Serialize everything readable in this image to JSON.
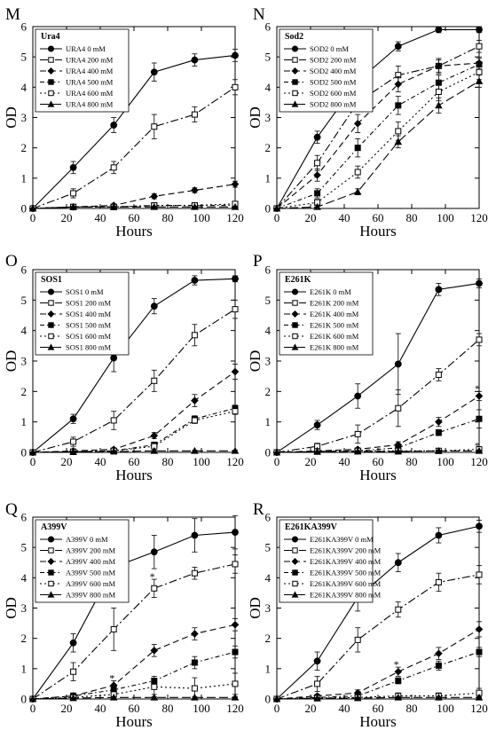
{
  "figure": {
    "panel_letters": [
      "M",
      "N",
      "O",
      "P",
      "Q",
      "R"
    ]
  },
  "chart_data": [
    {
      "type": "line",
      "panel": "M",
      "title": "Ura4",
      "xlabel": "Hours",
      "ylabel": "OD",
      "x": [
        0,
        24,
        48,
        72,
        96,
        120
      ],
      "xlim": [
        0,
        120
      ],
      "ylim": [
        0,
        6
      ],
      "xticks": [
        0,
        20,
        40,
        60,
        80,
        100,
        120
      ],
      "yticks": [
        0,
        1,
        2,
        3,
        4,
        5,
        6
      ],
      "legend_position": "top-left",
      "series": [
        {
          "name": "URA4 0 mM",
          "values": [
            0.0,
            1.35,
            2.75,
            4.5,
            4.9,
            5.05
          ],
          "errors": [
            0,
            0.2,
            0.25,
            0.3,
            0.2,
            0.2
          ]
        },
        {
          "name": "URA4 200 mM",
          "values": [
            0.0,
            0.5,
            1.35,
            2.7,
            3.1,
            4.0
          ],
          "errors": [
            0,
            0.15,
            0.2,
            0.4,
            0.25,
            0.25
          ]
        },
        {
          "name": "URA4 400 mM",
          "values": [
            0.0,
            0.05,
            0.1,
            0.4,
            0.6,
            0.8
          ],
          "errors": [
            0,
            0.05,
            0.05,
            0.08,
            0.08,
            0.1
          ]
        },
        {
          "name": "URA4 500 mM",
          "values": [
            0.0,
            0.05,
            0.05,
            0.1,
            0.1,
            0.1
          ],
          "errors": [
            0,
            0.03,
            0.03,
            0.05,
            0.05,
            0.05
          ]
        },
        {
          "name": "URA4 600 mM",
          "values": [
            0.0,
            0.05,
            0.05,
            0.1,
            0.1,
            0.15
          ],
          "errors": [
            0,
            0.03,
            0.03,
            0.05,
            0.05,
            0.05
          ]
        },
        {
          "name": "URA4 800 mM",
          "values": [
            0.0,
            0.05,
            0.05,
            0.05,
            0.05,
            0.05
          ],
          "errors": [
            0,
            0.02,
            0.02,
            0.02,
            0.02,
            0.02
          ]
        }
      ]
    },
    {
      "type": "line",
      "panel": "N",
      "title": "Sod2",
      "xlabel": "Hours",
      "ylabel": "OD",
      "x": [
        0,
        24,
        48,
        72,
        96,
        120
      ],
      "xlim": [
        0,
        120
      ],
      "ylim": [
        0,
        6
      ],
      "xticks": [
        0,
        20,
        40,
        60,
        80,
        100,
        120
      ],
      "yticks": [
        0,
        1,
        2,
        3,
        4,
        5,
        6
      ],
      "legend_position": "top-left",
      "series": [
        {
          "name": "SOD2 0 mM",
          "values": [
            0.0,
            2.35,
            4.2,
            5.35,
            5.9,
            5.9
          ],
          "errors": [
            0,
            0.2,
            0.2,
            0.15,
            0.1,
            0.1
          ]
        },
        {
          "name": "SOD2 200 mM",
          "values": [
            0.0,
            1.5,
            3.5,
            4.4,
            4.7,
            5.35
          ],
          "errors": [
            0,
            0.25,
            0.3,
            0.3,
            0.25,
            0.2
          ]
        },
        {
          "name": "SOD2 400 mM",
          "values": [
            0.0,
            1.1,
            2.8,
            4.1,
            4.7,
            4.8
          ],
          "errors": [
            0,
            0.2,
            0.3,
            0.25,
            0.2,
            0.2
          ]
        },
        {
          "name": "SOD2 500 mM",
          "values": [
            0.0,
            0.5,
            2.0,
            3.4,
            4.15,
            4.75
          ],
          "errors": [
            0,
            0.15,
            0.3,
            0.3,
            0.25,
            0.2
          ]
        },
        {
          "name": "SOD2 600 mM",
          "values": [
            0.0,
            0.2,
            1.2,
            2.55,
            3.85,
            4.5
          ],
          "errors": [
            0,
            0.1,
            0.2,
            0.3,
            0.3,
            0.25
          ]
        },
        {
          "name": "SOD2 800 mM",
          "values": [
            0.0,
            0.05,
            0.55,
            2.2,
            3.4,
            4.2
          ],
          "errors": [
            0,
            0.05,
            0.1,
            0.2,
            0.25,
            0.2
          ]
        }
      ]
    },
    {
      "type": "line",
      "panel": "O",
      "title": "SOS1",
      "xlabel": "Hours",
      "ylabel": "OD",
      "x": [
        0,
        24,
        48,
        72,
        96,
        120
      ],
      "xlim": [
        0,
        120
      ],
      "ylim": [
        0,
        6
      ],
      "xticks": [
        0,
        20,
        40,
        60,
        80,
        100,
        120
      ],
      "yticks": [
        0,
        1,
        2,
        3,
        4,
        5,
        6
      ],
      "legend_position": "top-left",
      "series": [
        {
          "name": "SOS1 0 mM",
          "values": [
            0.0,
            1.1,
            3.1,
            4.8,
            5.65,
            5.7
          ],
          "errors": [
            0,
            0.15,
            0.45,
            0.25,
            0.15,
            0.1
          ]
        },
        {
          "name": "SOS1 200 mM",
          "values": [
            0.0,
            0.35,
            1.05,
            2.35,
            3.85,
            4.7
          ],
          "errors": [
            0,
            0.15,
            0.3,
            0.35,
            0.35,
            0.3
          ]
        },
        {
          "name": "SOS1 400 mM",
          "values": [
            0.0,
            0.05,
            0.1,
            0.55,
            1.7,
            2.65
          ],
          "errors": [
            0,
            0.03,
            0.05,
            0.1,
            0.2,
            0.25
          ]
        },
        {
          "name": "SOS1 500 mM",
          "values": [
            0.0,
            0.02,
            0.05,
            0.25,
            1.1,
            1.45
          ],
          "errors": [
            0,
            0.02,
            0.03,
            0.05,
            0.1,
            0.1
          ]
        },
        {
          "name": "SOS1 600 mM",
          "values": [
            0.0,
            0.02,
            0.05,
            0.2,
            1.05,
            1.35
          ],
          "errors": [
            0,
            0.02,
            0.03,
            0.05,
            0.1,
            0.1
          ]
        },
        {
          "name": "SOS1 800 mM",
          "values": [
            0.0,
            0.02,
            0.03,
            0.05,
            0.05,
            0.05
          ],
          "errors": [
            0,
            0.02,
            0.02,
            0.02,
            0.02,
            0.02
          ]
        }
      ]
    },
    {
      "type": "line",
      "panel": "P",
      "title": "E261K",
      "xlabel": "Hours",
      "ylabel": "OD",
      "x": [
        0,
        24,
        48,
        72,
        96,
        120
      ],
      "xlim": [
        0,
        120
      ],
      "ylim": [
        0,
        6
      ],
      "xticks": [
        0,
        20,
        40,
        60,
        80,
        100,
        120
      ],
      "yticks": [
        0,
        1,
        2,
        3,
        4,
        5,
        6
      ],
      "legend_position": "top-left",
      "annotations": [
        "*",
        "*"
      ],
      "series": [
        {
          "name": "E261K 0 mM",
          "values": [
            0.0,
            0.9,
            1.85,
            2.9,
            5.35,
            5.55
          ],
          "errors": [
            0,
            0.15,
            0.4,
            1.0,
            0.2,
            0.15
          ]
        },
        {
          "name": "E261K 200 mM",
          "values": [
            0.0,
            0.2,
            0.6,
            1.45,
            2.55,
            3.7
          ],
          "errors": [
            0,
            0.1,
            0.3,
            0.6,
            0.2,
            0.2
          ]
        },
        {
          "name": "E261K 400 mM",
          "values": [
            0.0,
            0.05,
            0.1,
            0.25,
            1.0,
            1.85
          ],
          "errors": [
            0,
            0.03,
            0.05,
            0.1,
            0.15,
            0.15
          ]
        },
        {
          "name": "E261K 500 mM",
          "values": [
            0.0,
            0.03,
            0.05,
            0.15,
            0.65,
            1.1
          ],
          "errors": [
            0,
            0.02,
            0.03,
            0.05,
            0.1,
            0.3
          ]
        },
        {
          "name": "E261K 600 mM",
          "values": [
            0.0,
            0.03,
            0.05,
            0.05,
            0.05,
            0.1
          ],
          "errors": [
            0,
            0.02,
            0.02,
            0.02,
            0.02,
            0.03
          ]
        },
        {
          "name": "E261K 800 mM",
          "values": [
            0.0,
            0.02,
            0.03,
            0.03,
            0.05,
            0.05
          ],
          "errors": [
            0,
            0.02,
            0.02,
            0.02,
            0.02,
            0.02
          ]
        }
      ]
    },
    {
      "type": "line",
      "panel": "Q",
      "title": "A399V",
      "xlabel": "Hours",
      "ylabel": "OD",
      "x": [
        0,
        24,
        48,
        72,
        96,
        120
      ],
      "xlim": [
        0,
        120
      ],
      "ylim": [
        0,
        6
      ],
      "xticks": [
        0,
        20,
        40,
        60,
        80,
        100,
        120
      ],
      "yticks": [
        0,
        1,
        2,
        3,
        4,
        5,
        6
      ],
      "legend_position": "top-left",
      "annotations": [
        "*",
        "*"
      ],
      "series": [
        {
          "name": "A399V 0 mM",
          "values": [
            0.0,
            1.85,
            4.35,
            4.85,
            5.4,
            5.5
          ],
          "errors": [
            0,
            0.3,
            0.6,
            0.55,
            0.55,
            0.55
          ]
        },
        {
          "name": "A399V 200 mM",
          "values": [
            0.0,
            0.9,
            2.3,
            3.65,
            4.15,
            4.45
          ],
          "errors": [
            0,
            0.3,
            0.7,
            0.3,
            0.2,
            0.3
          ]
        },
        {
          "name": "A399V 400 mM",
          "values": [
            0.0,
            0.1,
            0.45,
            1.6,
            2.15,
            2.45
          ],
          "errors": [
            0,
            0.1,
            0.15,
            0.2,
            0.2,
            0.2
          ]
        },
        {
          "name": "A399V 500 mM",
          "values": [
            0.0,
            0.1,
            0.3,
            0.6,
            1.2,
            1.55
          ],
          "errors": [
            0,
            0.05,
            0.1,
            0.15,
            0.2,
            0.2
          ]
        },
        {
          "name": "A399V 600 mM",
          "values": [
            0.0,
            0.05,
            0.15,
            0.4,
            0.35,
            0.5
          ],
          "errors": [
            0,
            0.05,
            0.1,
            0.25,
            0.35,
            0.35
          ]
        },
        {
          "name": "A399V 800 mM",
          "values": [
            0.0,
            0.03,
            0.05,
            0.05,
            0.05,
            0.05
          ],
          "errors": [
            0,
            0.02,
            0.02,
            0.02,
            0.02,
            0.02
          ]
        }
      ]
    },
    {
      "type": "line",
      "panel": "R",
      "title": "E261KA399V",
      "xlabel": "Hours",
      "ylabel": "OD",
      "x": [
        0,
        24,
        48,
        72,
        96,
        120
      ],
      "xlim": [
        0,
        120
      ],
      "ylim": [
        0,
        6
      ],
      "xticks": [
        0,
        20,
        40,
        60,
        80,
        100,
        120
      ],
      "yticks": [
        0,
        1,
        2,
        3,
        4,
        5,
        6
      ],
      "legend_position": "top-left",
      "annotations": [
        "*"
      ],
      "series": [
        {
          "name": "E261KA399V 0 mM",
          "values": [
            0.0,
            1.25,
            3.35,
            4.5,
            5.4,
            5.7
          ],
          "errors": [
            0,
            0.3,
            0.45,
            0.3,
            0.25,
            0.2
          ]
        },
        {
          "name": "E261KA399V 200 mM",
          "values": [
            0.0,
            0.5,
            1.95,
            2.95,
            3.85,
            4.1
          ],
          "errors": [
            0,
            0.25,
            0.4,
            0.25,
            0.3,
            0.3
          ]
        },
        {
          "name": "E261KA399V 400 mM",
          "values": [
            0.0,
            0.1,
            0.2,
            0.9,
            1.5,
            2.3
          ],
          "errors": [
            0,
            0.05,
            0.1,
            0.15,
            0.2,
            0.25
          ]
        },
        {
          "name": "E261KA399V 500 mM",
          "values": [
            0.0,
            0.05,
            0.1,
            0.6,
            1.1,
            1.55
          ],
          "errors": [
            0,
            0.03,
            0.05,
            0.1,
            0.15,
            0.15
          ]
        },
        {
          "name": "E261KA399V 600 mM",
          "values": [
            0.0,
            0.03,
            0.05,
            0.1,
            0.1,
            0.2
          ],
          "errors": [
            0,
            0.02,
            0.03,
            0.1,
            0.1,
            0.15
          ]
        },
        {
          "name": "E261KA399V 800 mM",
          "values": [
            0.0,
            0.02,
            0.03,
            0.05,
            0.05,
            0.05
          ],
          "errors": [
            0,
            0.02,
            0.02,
            0.02,
            0.02,
            0.02
          ]
        }
      ]
    }
  ]
}
